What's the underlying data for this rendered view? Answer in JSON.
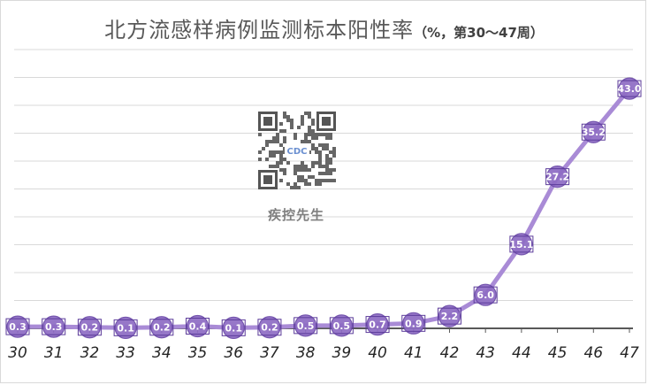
{
  "title": {
    "main": "北方流感样病例监测标本阳性率",
    "sub": "（%，第30～47周）"
  },
  "watermark": {
    "brand": "疾控先生",
    "qr_center_text": "CDC"
  },
  "colors": {
    "line": "#a98bd6",
    "marker_fill": "#8e6cc4",
    "marker_edge": "#6a48a8",
    "grid": "#d9d9d9",
    "axis": "#595959"
  },
  "chart_data": {
    "type": "line",
    "title": "北方流感样病例监测标本阳性率（%，第30～47周）",
    "xlabel": "",
    "ylabel": "",
    "categories": [
      "30",
      "31",
      "32",
      "33",
      "34",
      "35",
      "36",
      "37",
      "38",
      "39",
      "40",
      "41",
      "42",
      "43",
      "44",
      "45",
      "46",
      "47"
    ],
    "series": [
      {
        "values": [
          0.3,
          0.3,
          0.2,
          0.1,
          0.2,
          0.4,
          0.1,
          0.2,
          0.5,
          0.5,
          0.7,
          0.9,
          2.2,
          6.0,
          15.1,
          27.2,
          35.2,
          43.0
        ],
        "labels": [
          "0.3",
          "0.3",
          "0.2",
          "0.1",
          "0.2",
          "0.4",
          "0.1",
          "0.2",
          "0.5",
          "0.5",
          "0.7",
          "0.9",
          "2.2",
          "6.0",
          "15.1",
          "27.2",
          "35.2",
          "43.0"
        ]
      }
    ],
    "ylim": [
      0,
      50
    ],
    "grid": true,
    "legend": "none"
  }
}
